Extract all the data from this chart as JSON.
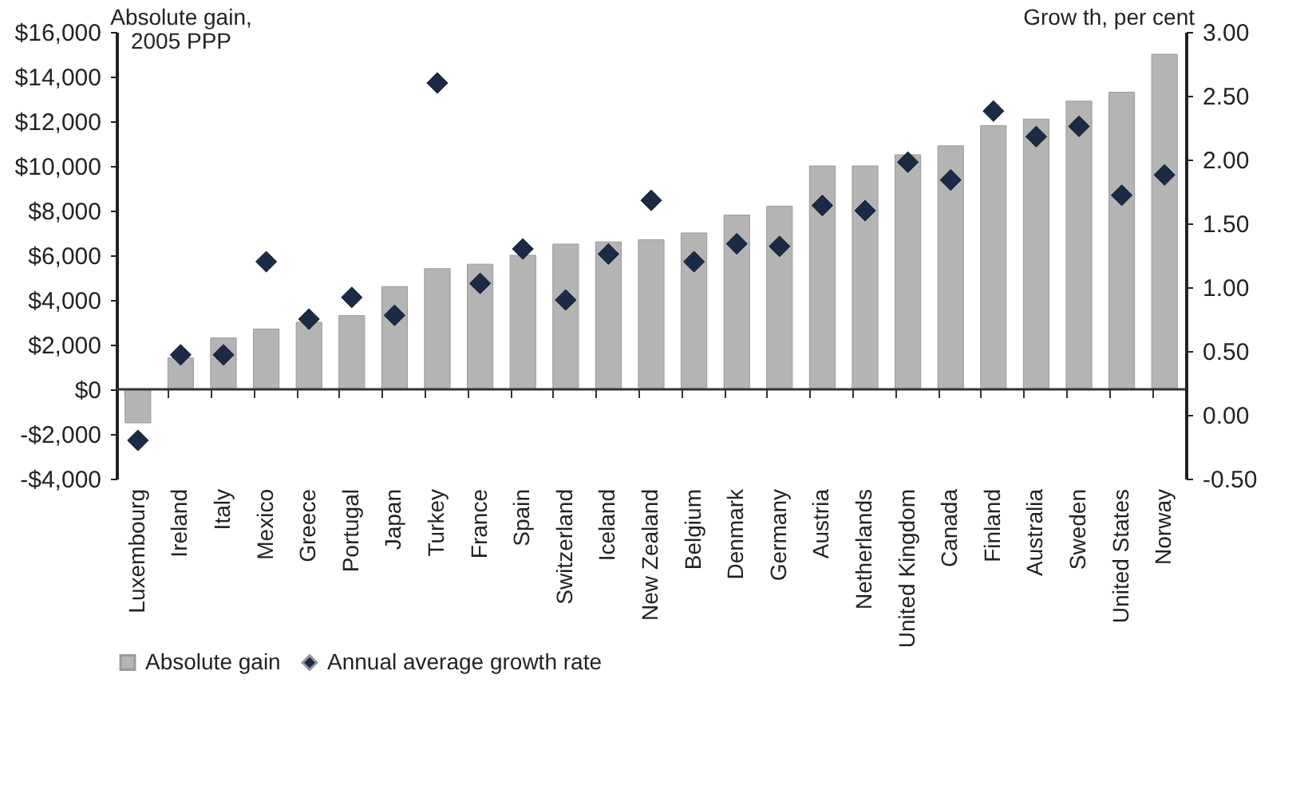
{
  "chart_data": {
    "type": "bar",
    "ylabel": "Absolute gain, 2005 PPP",
    "y2label": "Grow th, per cent",
    "categories": [
      "Luxembourg",
      "Ireland",
      "Italy",
      "Mexico",
      "Greece",
      "Portugal",
      "Japan",
      "Turkey",
      "France",
      "Spain",
      "Switzerland",
      "Iceland",
      "New Zealand",
      "Belgium",
      "Denmark",
      "Germany",
      "Austria",
      "Netherlands",
      "United Kingdom",
      "Canada",
      "Finland",
      "Australia",
      "Sweden",
      "United States",
      "Norway"
    ],
    "series": [
      {
        "name": "Absolute gain",
        "color": "#b4b4b4",
        "values": [
          -1500,
          1400,
          2300,
          2700,
          3000,
          3300,
          4600,
          5400,
          5600,
          6000,
          6500,
          6600,
          6700,
          7000,
          7800,
          8200,
          10000,
          10000,
          10500,
          10900,
          11800,
          12100,
          12900,
          13300,
          15000
        ]
      },
      {
        "name": "Annual average growth rate",
        "type": "scatter",
        "axis": "y2",
        "marker": "diamond",
        "color": "#1c2b45",
        "values": [
          -0.2,
          0.47,
          0.47,
          1.2,
          0.75,
          0.92,
          0.78,
          2.6,
          1.03,
          1.3,
          0.9,
          1.26,
          1.68,
          1.2,
          1.34,
          1.32,
          1.64,
          1.6,
          1.98,
          1.84,
          2.38,
          2.18,
          2.26,
          1.72,
          1.88
        ]
      }
    ],
    "ylim": [
      -4000,
      16000
    ],
    "yticks": [
      {
        "value": -4000,
        "label": "-$4,000"
      },
      {
        "value": -2000,
        "label": "-$2,000"
      },
      {
        "value": 0,
        "label": "$0"
      },
      {
        "value": 2000,
        "label": "$2,000"
      },
      {
        "value": 4000,
        "label": "$4,000"
      },
      {
        "value": 6000,
        "label": "$6,000"
      },
      {
        "value": 8000,
        "label": "$8,000"
      },
      {
        "value": 10000,
        "label": "$10,000"
      },
      {
        "value": 12000,
        "label": "$12,000"
      },
      {
        "value": 14000,
        "label": "$14,000"
      },
      {
        "value": 16000,
        "label": "$16,000"
      }
    ],
    "y2lim": [
      -0.5,
      3
    ],
    "y2ticks": [
      {
        "value": -0.5,
        "label": "-0.50"
      },
      {
        "value": 0,
        "label": "0.00"
      },
      {
        "value": 0.5,
        "label": "0.50"
      },
      {
        "value": 1,
        "label": "1.00"
      },
      {
        "value": 1.5,
        "label": "1.50"
      },
      {
        "value": 2,
        "label": "2.00"
      },
      {
        "value": 2.5,
        "label": "2.50"
      },
      {
        "value": 3,
        "label": "3.00"
      }
    ],
    "ref_lines": [
      {
        "axis": "y",
        "value": 0
      }
    ],
    "legend": "bottom"
  }
}
